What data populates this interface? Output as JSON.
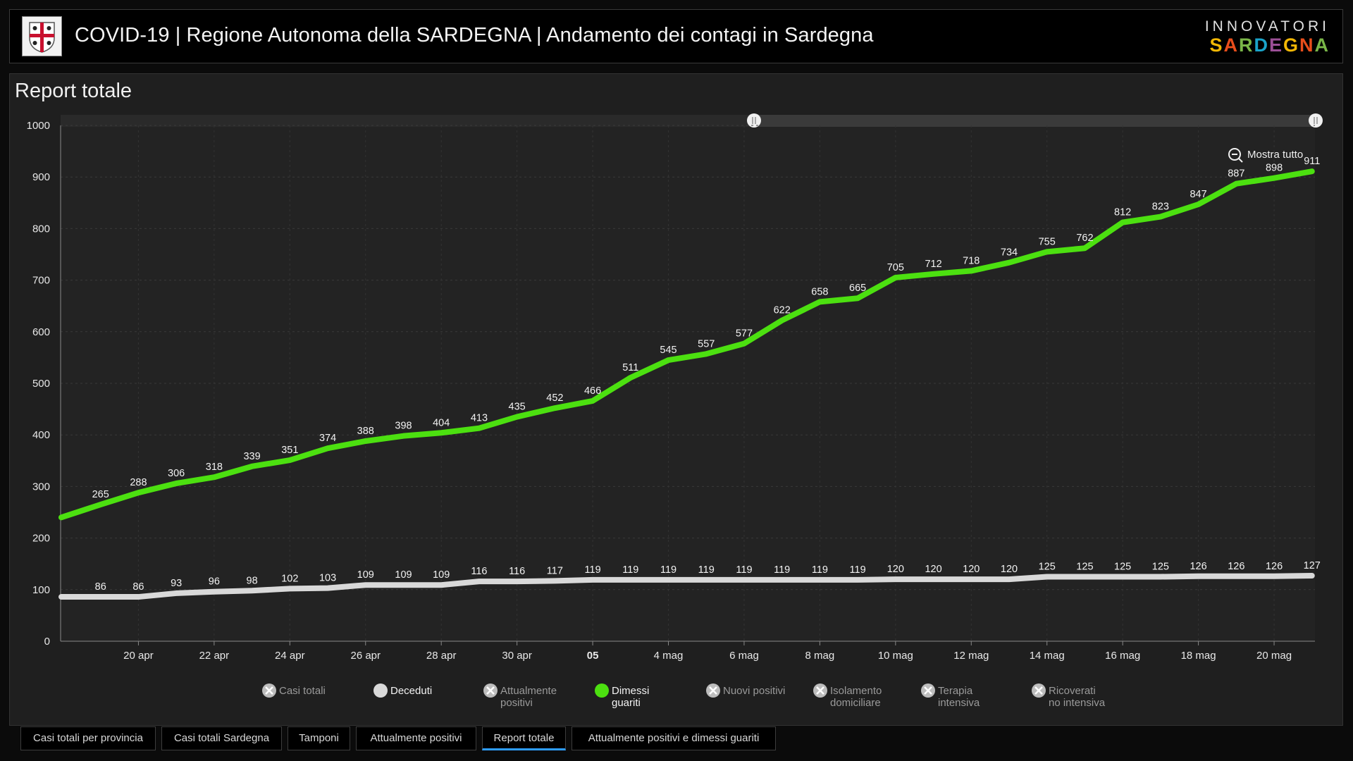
{
  "header": {
    "title": "COVID-19 | Regione Autonoma della SARDEGNA | Andamento dei contagi in Sardegna",
    "brand_top": "INNOVATORI",
    "brand_bottom": "SARDEGNA",
    "brand_colors": [
      "#f2b705",
      "#e94e1b",
      "#7ab648",
      "#1aa3c9",
      "#9c4f96",
      "#f2b705",
      "#e94e1b",
      "#7ab648"
    ]
  },
  "panel": {
    "title": "Report totale",
    "zoom_button": "Mostra tutto"
  },
  "chart_data": {
    "type": "line",
    "x": [
      "18 apr",
      "19 apr",
      "20 apr",
      "21 apr",
      "22 apr",
      "23 apr",
      "24 apr",
      "25 apr",
      "26 apr",
      "27 apr",
      "28 apr",
      "29 apr",
      "30 apr",
      "1 mag",
      "2 mag",
      "3 mag",
      "4 mag",
      "5 mag",
      "6 mag",
      "7 mag",
      "8 mag",
      "9 mag",
      "10 mag",
      "11 mag",
      "12 mag",
      "13 mag",
      "14 mag",
      "15 mag",
      "16 mag",
      "17 mag",
      "18 mag",
      "19 mag",
      "20 mag",
      "21 mag"
    ],
    "x_ticks": [
      {
        "x": "20 apr",
        "label": "20 apr"
      },
      {
        "x": "22 apr",
        "label": "22 apr"
      },
      {
        "x": "24 apr",
        "label": "24 apr"
      },
      {
        "x": "26 apr",
        "label": "26 apr"
      },
      {
        "x": "28 apr",
        "label": "28 apr"
      },
      {
        "x": "30 apr",
        "label": "30 apr"
      },
      {
        "x": "2 mag",
        "label": "05",
        "bold": true
      },
      {
        "x": "4 mag",
        "label": "4 mag"
      },
      {
        "x": "6 mag",
        "label": "6 mag"
      },
      {
        "x": "8 mag",
        "label": "8 mag"
      },
      {
        "x": "10 mag",
        "label": "10 mag"
      },
      {
        "x": "12 mag",
        "label": "12 mag"
      },
      {
        "x": "14 mag",
        "label": "14 mag"
      },
      {
        "x": "16 mag",
        "label": "16 mag"
      },
      {
        "x": "18 mag",
        "label": "18 mag"
      },
      {
        "x": "20 mag",
        "label": "20 mag"
      }
    ],
    "ylim": [
      0,
      1000
    ],
    "y_ticks": [
      0,
      100,
      200,
      300,
      400,
      500,
      600,
      700,
      800,
      900,
      1000
    ],
    "grid": true,
    "series": [
      {
        "name": "Dimessi guariti",
        "color": "#4ce010",
        "values": [
          240,
          265,
          288,
          306,
          318,
          339,
          351,
          374,
          388,
          398,
          404,
          413,
          435,
          452,
          466,
          511,
          545,
          557,
          577,
          622,
          658,
          665,
          705,
          712,
          718,
          734,
          755,
          762,
          812,
          823,
          847,
          887,
          898,
          911
        ],
        "labels_from": 1
      },
      {
        "name": "Deceduti",
        "color": "#d9d9d9",
        "values": [
          86,
          86,
          86,
          93,
          96,
          98,
          102,
          103,
          109,
          109,
          109,
          116,
          116,
          117,
          119,
          119,
          119,
          119,
          119,
          119,
          119,
          119,
          120,
          120,
          120,
          120,
          125,
          125,
          125,
          125,
          126,
          126,
          126,
          127
        ],
        "labels_from": 1
      }
    ]
  },
  "legend": [
    {
      "label": "Casi totali",
      "active": false
    },
    {
      "label": "Deceduti",
      "active": true,
      "color": "#d9d9d9"
    },
    {
      "label": "Attualmente positivi",
      "active": false
    },
    {
      "label": "Dimessi guariti",
      "active": true,
      "color": "#4ce010"
    },
    {
      "label": "Nuovi positivi",
      "active": false
    },
    {
      "label": "Isolamento domiciliare",
      "active": false
    },
    {
      "label": "Terapia intensiva",
      "active": false
    },
    {
      "label": "Ricoverati no intensiva",
      "active": false
    }
  ],
  "tabs": [
    {
      "label": "Casi totali per provincia",
      "active": false
    },
    {
      "label": "Casi totali Sardegna",
      "active": false
    },
    {
      "label": "Tamponi",
      "active": false
    },
    {
      "label": "Attualmente positivi",
      "active": false
    },
    {
      "label": "Report totale",
      "active": true
    },
    {
      "label": "Attualmente positivi e dimessi guariti",
      "active": false
    }
  ]
}
